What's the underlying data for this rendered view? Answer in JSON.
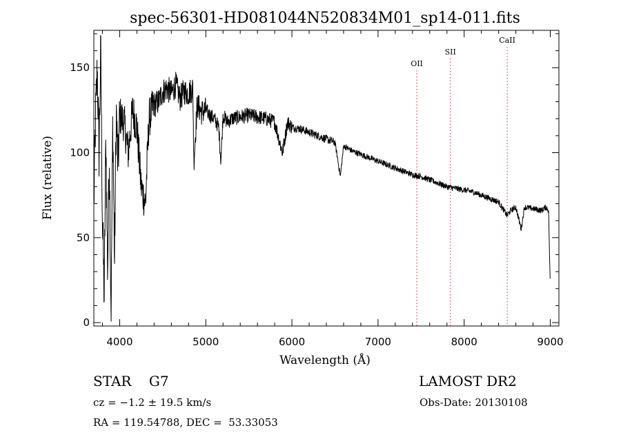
{
  "chart_data": {
    "type": "line",
    "title": "spec-56301-HD081044N520834M01_sp14-011.fits",
    "xlabel": "Wavelength (Å)",
    "ylabel": "Flux (relative)",
    "xlim": [
      3700,
      9100
    ],
    "ylim": [
      -2,
      172
    ],
    "x_ticks": [
      4000,
      5000,
      6000,
      7000,
      8000,
      9000
    ],
    "y_ticks": [
      0,
      50,
      100,
      150
    ],
    "grid": false,
    "line_color": "#000000",
    "marker_color": "#e0404a",
    "spectral_lines": [
      {
        "label": "OII",
        "wavelength": 7450
      },
      {
        "label": "SII",
        "wavelength": 7840
      },
      {
        "label": "CaII",
        "wavelength": 8500
      }
    ],
    "series": [
      {
        "x": [
          3700,
          3720,
          3740,
          3760,
          3780,
          3800,
          3820,
          3840,
          3860,
          3880,
          3900,
          3920,
          3940,
          3960,
          3980,
          4000,
          4050,
          4100,
          4150,
          4200,
          4250,
          4300,
          4340,
          4400,
          4450,
          4500,
          4550,
          4600,
          4650,
          4700,
          4750,
          4800,
          4850,
          4861,
          4900,
          4950,
          5000,
          5050,
          5100,
          5150,
          5175,
          5200,
          5250,
          5300,
          5400,
          5500,
          5600,
          5700,
          5800,
          5890,
          5950,
          6000,
          6100,
          6200,
          6300,
          6400,
          6500,
          6563,
          6600,
          6700,
          6800,
          6900,
          7000,
          7100,
          7200,
          7300,
          7400,
          7500,
          7600,
          7700,
          7800,
          7900,
          8000,
          8100,
          8200,
          8300,
          8400,
          8498,
          8542,
          8600,
          8662,
          8700,
          8800,
          8900,
          8950,
          8980,
          9000
        ],
        "y": [
          70,
          120,
          150,
          100,
          160,
          60,
          15,
          110,
          30,
          100,
          5,
          120,
          35,
          125,
          90,
          122,
          118,
          100,
          125,
          115,
          80,
          70,
          120,
          128,
          130,
          136,
          138,
          135,
          140,
          132,
          136,
          135,
          138,
          95,
          128,
          124,
          125,
          122,
          120,
          115,
          95,
          122,
          118,
          120,
          121,
          122,
          121,
          120,
          118,
          100,
          118,
          115,
          114,
          112,
          110,
          108,
          106,
          86,
          104,
          101,
          99,
          97,
          95,
          93,
          91,
          89,
          87,
          86,
          84,
          82,
          80,
          79,
          78,
          77,
          75,
          73,
          71,
          63,
          66,
          68,
          55,
          68,
          67,
          66,
          68,
          66,
          20
        ]
      }
    ]
  },
  "info": {
    "object_class": "STAR    G7",
    "velocity": "cz = −1.2 ± 19.5 km/s",
    "coordinates": "RA = 119.54788, DEC =  53.33053",
    "survey": "LAMOST DR2",
    "obs_date": "Obs-Date: 20130108"
  }
}
